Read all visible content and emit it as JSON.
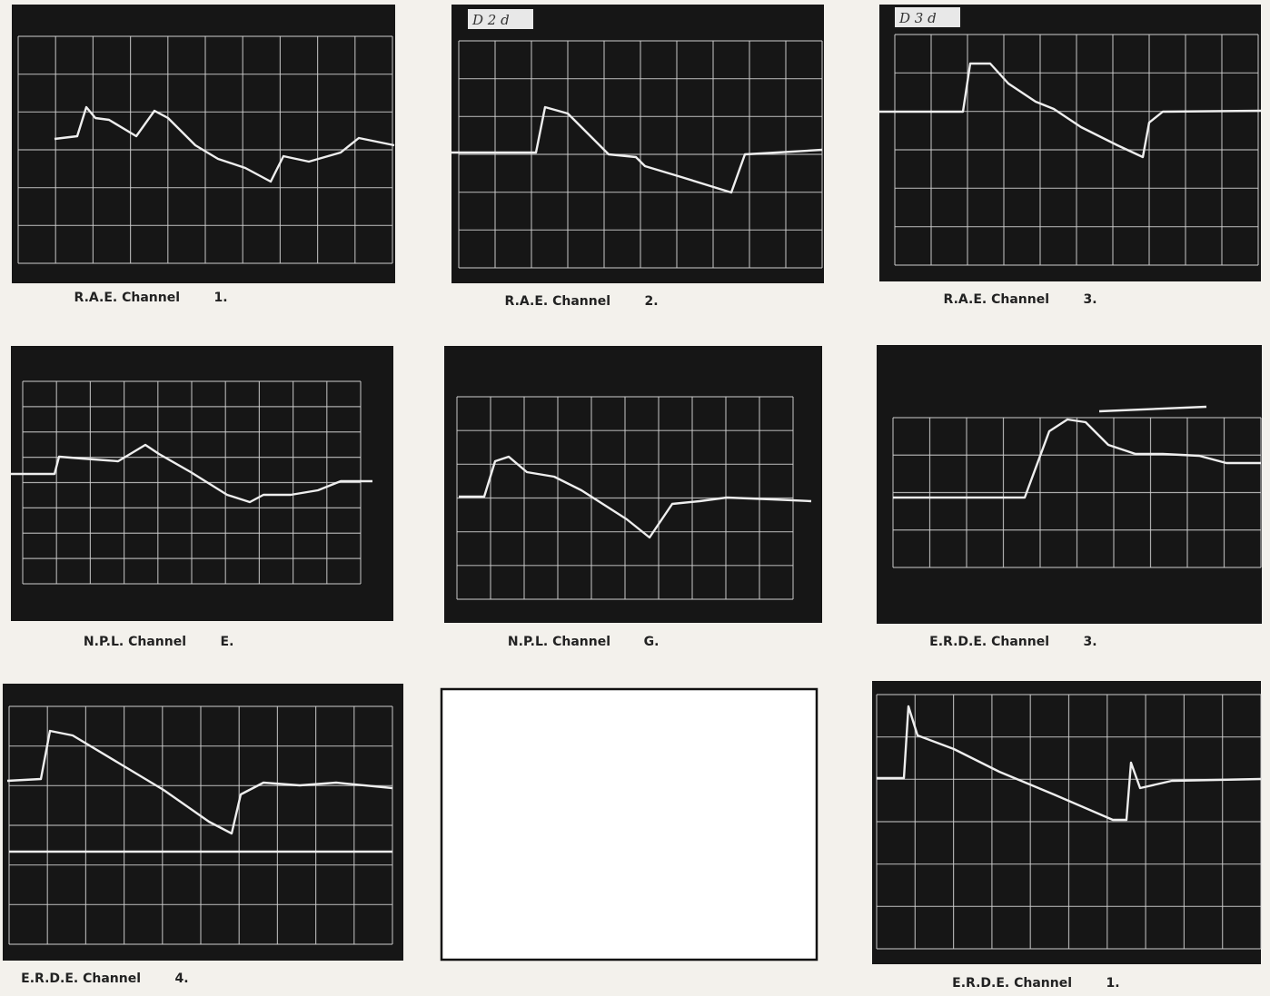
{
  "panels": [
    {
      "label": "R.A.E. Channel",
      "channel": "1."
    },
    {
      "label": "R.A.E. Channel",
      "channel": "2.",
      "tag": "D 2 d"
    },
    {
      "label": "R.A.E. Channel",
      "channel": "3.",
      "tag": "D 3 d"
    },
    {
      "label": "N.P.L. Channel",
      "channel": "E."
    },
    {
      "label": "N.P.L. Channel",
      "channel": "G."
    },
    {
      "label": "E.R.D.E. Channel",
      "channel": "3."
    },
    {
      "label": "E.R.D.E. Channel",
      "channel": "4."
    },
    {
      "label": "E.R.D.E. Channel",
      "channel": "1."
    }
  ]
}
